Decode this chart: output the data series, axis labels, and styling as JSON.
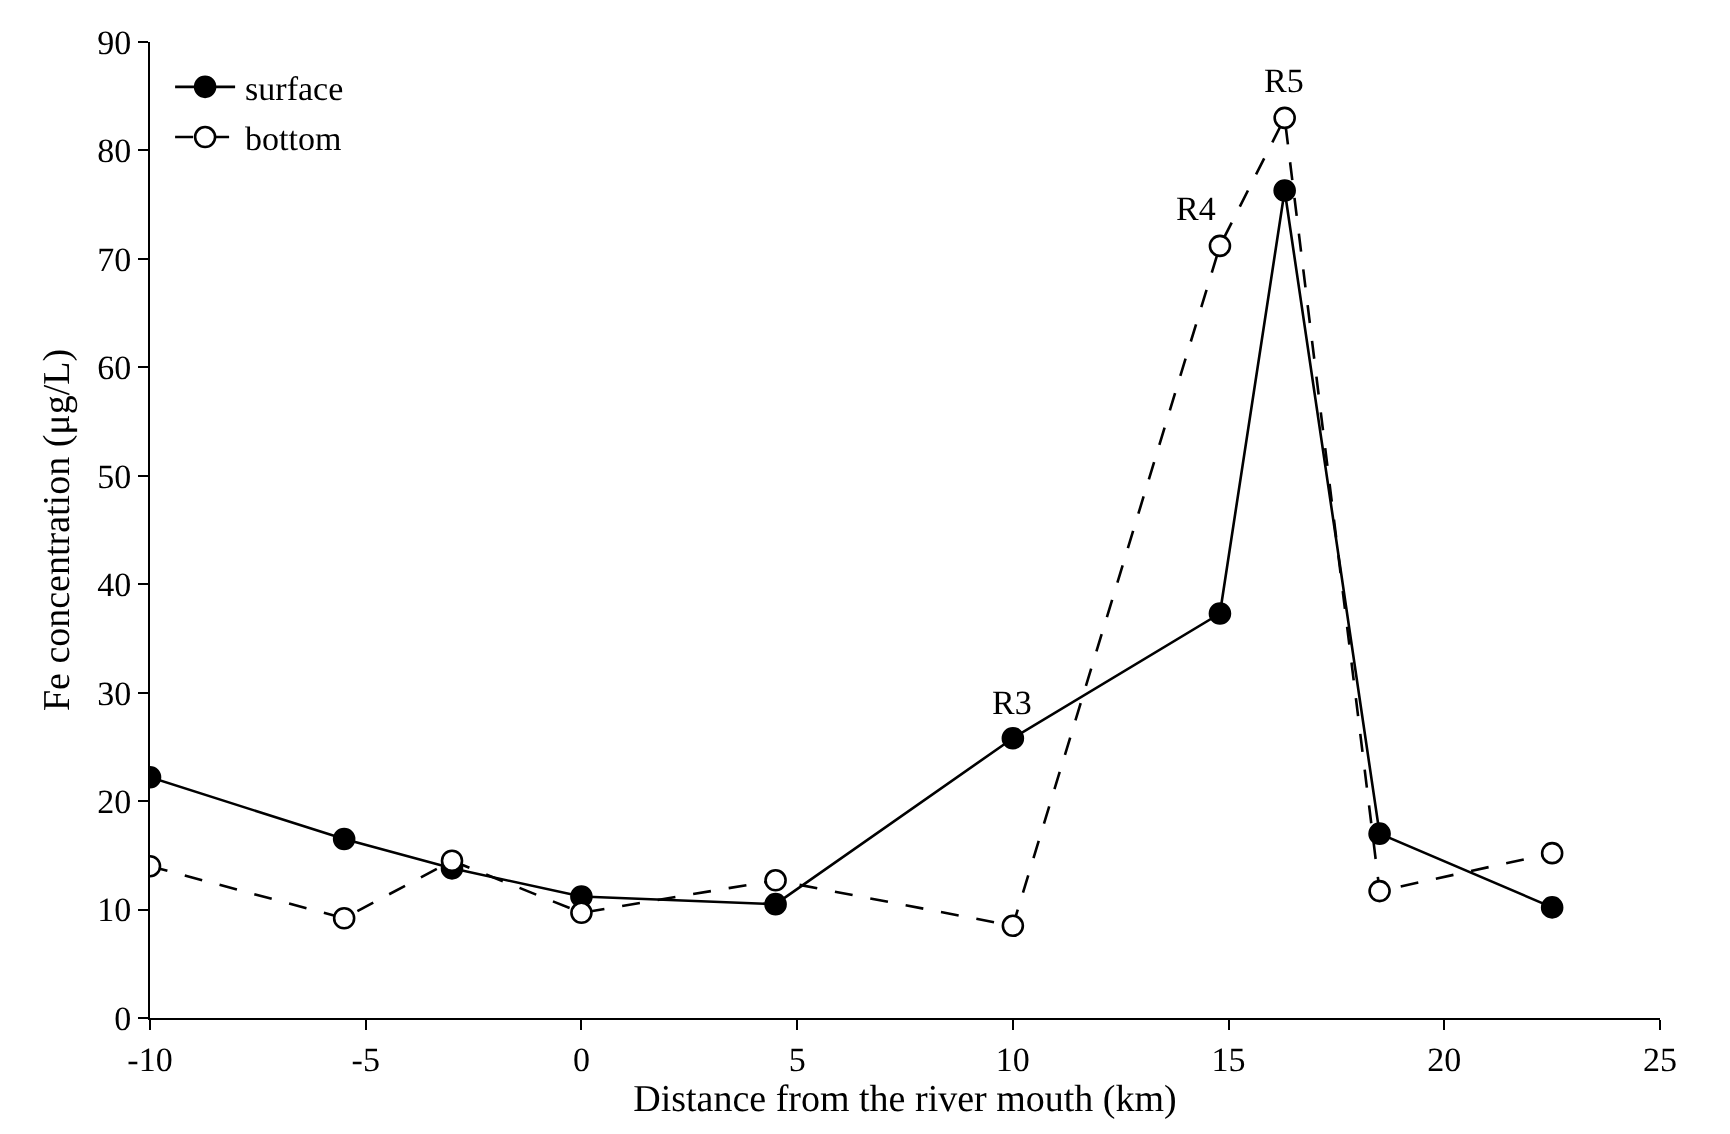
{
  "chart_data": {
    "type": "line",
    "xlabel": "Distance from the river mouth (km)",
    "ylabel": "Fe concentration (μg/L)",
    "x": [
      -10,
      -5.5,
      -3,
      0,
      4.5,
      10,
      14.8,
      16.3,
      18.5,
      22.5
    ],
    "series": [
      {
        "name": "surface",
        "color": "#000000",
        "marker": "circle",
        "line_style": "solid",
        "values": [
          22.2,
          16.5,
          13.8,
          11.2,
          10.5,
          25.8,
          37.3,
          76.3,
          17,
          10.2
        ]
      },
      {
        "name": "bottom",
        "color": "#000000",
        "marker": "circle-open",
        "line_style": "dashed",
        "values": [
          14,
          9.2,
          14.5,
          9.7,
          12.7,
          8.5,
          71.2,
          83,
          11.7,
          15.2
        ]
      }
    ],
    "annotations": [
      {
        "text": "R3",
        "x": 10,
        "y": 25.8
      },
      {
        "text": "R4",
        "x": 14.8,
        "y": 71.2
      },
      {
        "text": "R5",
        "x": 16.3,
        "y": 83
      }
    ],
    "xlim": [
      -10,
      25
    ],
    "xticks": [
      -10,
      -5,
      0,
      5,
      10,
      15,
      20,
      25
    ],
    "ylim": [
      0,
      90
    ],
    "yticks": [
      0,
      10,
      20,
      30,
      40,
      50,
      60,
      70,
      80,
      90
    ],
    "legend": "top left"
  }
}
